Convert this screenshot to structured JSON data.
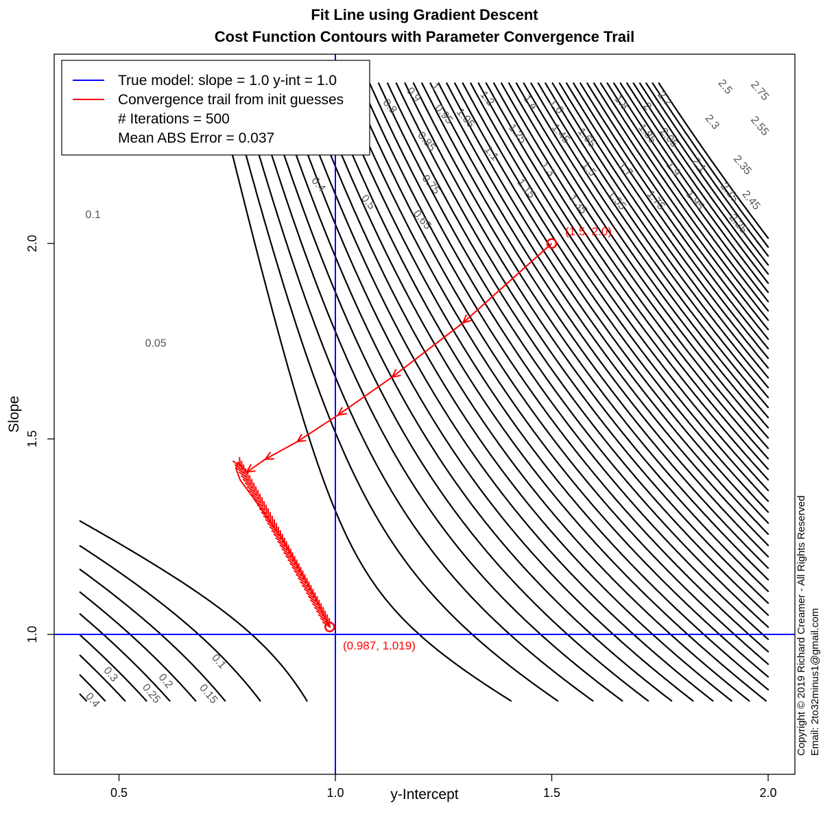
{
  "chart_data": {
    "type": "contour",
    "title": "Fit Line using Gradient Descent",
    "subtitle": "Cost Function Contours with Parameter Convergence Trail",
    "xlabel": "y-Intercept",
    "ylabel": "Slope",
    "xlim": [
      0.35,
      2.07
    ],
    "ylim": [
      0.79,
      2.46
    ],
    "x_ticks": [
      "0.5",
      "1.0",
      "1.5",
      "2.0"
    ],
    "x_tick_values": [
      0.5,
      1.0,
      1.5,
      2.0
    ],
    "y_ticks": [
      "1.0",
      "1.5",
      "2.0"
    ],
    "y_tick_values": [
      1.0,
      1.5,
      2.0
    ],
    "grid": false,
    "legend_position": "top-left",
    "legend": {
      "entries": [
        {
          "label": "True model: slope = 1.0  y-int = 1.0",
          "color": "#0000ff"
        },
        {
          "label": "Convergence trail from init guesses",
          "color": "#ff0000"
        }
      ],
      "notes": [
        "# Iterations = 500",
        "Mean ABS Error = 0.037"
      ]
    },
    "true_model": {
      "slope": 1.0,
      "y_intercept": 1.0,
      "color": "#0000ff"
    },
    "contour_levels": [
      0.05,
      0.1,
      0.15,
      0.2,
      0.25,
      0.3,
      0.35,
      0.4,
      0.45,
      0.5,
      0.55,
      0.6,
      0.65,
      0.7,
      0.75,
      0.8,
      0.85,
      0.9,
      0.95,
      1,
      1.05,
      1.1,
      1.15,
      1.2,
      1.25,
      1.3,
      1.35,
      1.4,
      1.45,
      1.5,
      1.55,
      1.6,
      1.65,
      1.7,
      1.75,
      1.8,
      1.85,
      1.9,
      1.95,
      2,
      2.05,
      2.1,
      2.15,
      2.2,
      2.25,
      2.3,
      2.35,
      2.4,
      2.45,
      2.5,
      2.55,
      2.6,
      2.65,
      2.7,
      2.75
    ],
    "contour_labels": [
      {
        "text": "0.05",
        "x": 0.585,
        "y": 1.743,
        "angle": 0
      },
      {
        "text": "0.1",
        "x": 0.44,
        "y": 2.072,
        "angle": 0
      },
      {
        "text": "0.4",
        "x": 0.96,
        "y": 2.15,
        "angle": 50
      },
      {
        "text": "0.5",
        "x": 1.075,
        "y": 2.105,
        "angle": 50
      },
      {
        "text": "0.65",
        "x": 1.2,
        "y": 2.06,
        "angle": 50
      },
      {
        "text": "0.75",
        "x": 1.22,
        "y": 2.15,
        "angle": 50
      },
      {
        "text": "0.85",
        "x": 1.21,
        "y": 2.26,
        "angle": 50
      },
      {
        "text": "0.95",
        "x": 1.25,
        "y": 2.33,
        "angle": 50
      },
      {
        "text": "0.8",
        "x": 1.125,
        "y": 2.35,
        "angle": 50
      },
      {
        "text": "0.9",
        "x": 1.18,
        "y": 2.38,
        "angle": 50
      },
      {
        "text": "1",
        "x": 1.23,
        "y": 2.4,
        "angle": 50
      },
      {
        "text": "1.05",
        "x": 1.3,
        "y": 2.32,
        "angle": 50
      },
      {
        "text": "1.1",
        "x": 1.36,
        "y": 2.23,
        "angle": 50
      },
      {
        "text": "1.15",
        "x": 1.44,
        "y": 2.14,
        "angle": 50
      },
      {
        "text": "1.2",
        "x": 1.35,
        "y": 2.37,
        "angle": 50
      },
      {
        "text": "1.25",
        "x": 1.42,
        "y": 2.28,
        "angle": 50
      },
      {
        "text": "1.3",
        "x": 1.49,
        "y": 2.19,
        "angle": 50
      },
      {
        "text": "1.35",
        "x": 1.56,
        "y": 2.1,
        "angle": 50
      },
      {
        "text": "1.4",
        "x": 1.45,
        "y": 2.36,
        "angle": 50
      },
      {
        "text": "1.45",
        "x": 1.52,
        "y": 2.28,
        "angle": 50
      },
      {
        "text": "1.5",
        "x": 1.585,
        "y": 2.19,
        "angle": 50
      },
      {
        "text": "1.55",
        "x": 1.65,
        "y": 2.11,
        "angle": 50
      },
      {
        "text": "1.6",
        "x": 1.51,
        "y": 2.35,
        "angle": 50
      },
      {
        "text": "1.65",
        "x": 1.58,
        "y": 2.27,
        "angle": 50
      },
      {
        "text": "1.7",
        "x": 1.67,
        "y": 2.19,
        "angle": 50
      },
      {
        "text": "1.75",
        "x": 1.74,
        "y": 2.11,
        "angle": 50
      },
      {
        "text": "1.8",
        "x": 1.66,
        "y": 2.36,
        "angle": 50
      },
      {
        "text": "1.85",
        "x": 1.72,
        "y": 2.28,
        "angle": 50
      },
      {
        "text": "1.9",
        "x": 1.78,
        "y": 2.19,
        "angle": 50
      },
      {
        "text": "1.95",
        "x": 1.83,
        "y": 2.11,
        "angle": 50
      },
      {
        "text": "2",
        "x": 1.72,
        "y": 2.35,
        "angle": 50
      },
      {
        "text": "2.05",
        "x": 1.77,
        "y": 2.27,
        "angle": 50
      },
      {
        "text": "2.1",
        "x": 1.84,
        "y": 2.2,
        "angle": 50
      },
      {
        "text": "2.15",
        "x": 1.91,
        "y": 2.13,
        "angle": 50
      },
      {
        "text": "2.2",
        "x": 1.76,
        "y": 2.37,
        "angle": 50
      },
      {
        "text": "2.25",
        "x": 1.93,
        "y": 2.05,
        "angle": 50
      },
      {
        "text": "2.3",
        "x": 1.87,
        "y": 2.31,
        "angle": 50
      },
      {
        "text": "2.35",
        "x": 1.94,
        "y": 2.2,
        "angle": 50
      },
      {
        "text": "2.45",
        "x": 1.96,
        "y": 2.11,
        "angle": 50
      },
      {
        "text": "2.5",
        "x": 1.9,
        "y": 2.4,
        "angle": 50
      },
      {
        "text": "2.55",
        "x": 1.98,
        "y": 2.3,
        "angle": 50
      },
      {
        "text": "2.75",
        "x": 1.98,
        "y": 2.39,
        "angle": 50
      },
      {
        "text": "0.3",
        "x": 0.48,
        "y": 0.897,
        "angle": 50
      },
      {
        "text": "0.25",
        "x": 0.574,
        "y": 0.848,
        "angle": 50
      },
      {
        "text": "0.2",
        "x": 0.607,
        "y": 0.88,
        "angle": 50
      },
      {
        "text": "0.15",
        "x": 0.706,
        "y": 0.847,
        "angle": 50
      },
      {
        "text": "0.1",
        "x": 0.73,
        "y": 0.93,
        "angle": 50
      },
      {
        "text": "0.4",
        "x": 0.438,
        "y": 0.831,
        "angle": 50
      }
    ],
    "trail": {
      "start": [
        1.5,
        2.0
      ],
      "end": [
        0.987,
        1.019
      ],
      "start_label": "(1.5, 2.0)",
      "end_label": "(0.987, 1.019)",
      "iterations": 500,
      "color": "#ff0000",
      "points": [
        [
          1.5,
          2.0
        ],
        [
          1.295,
          1.797
        ],
        [
          1.131,
          1.658
        ],
        [
          1.006,
          1.561
        ],
        [
          0.912,
          1.493
        ],
        [
          0.838,
          1.448
        ],
        [
          0.795,
          1.415
        ],
        [
          0.775,
          1.44
        ],
        [
          0.77,
          1.425
        ],
        [
          0.78,
          1.395
        ],
        [
          0.81,
          1.35
        ],
        [
          0.845,
          1.295
        ],
        [
          0.88,
          1.24
        ],
        [
          0.91,
          1.18
        ],
        [
          0.94,
          1.12
        ],
        [
          0.96,
          1.08
        ],
        [
          0.975,
          1.045
        ],
        [
          0.987,
          1.019
        ]
      ]
    },
    "copyright": [
      "Copyright © 2019 Richard Creamer - All Rights Reserved",
      "Email: 2to32minus1@gmail.com"
    ]
  }
}
